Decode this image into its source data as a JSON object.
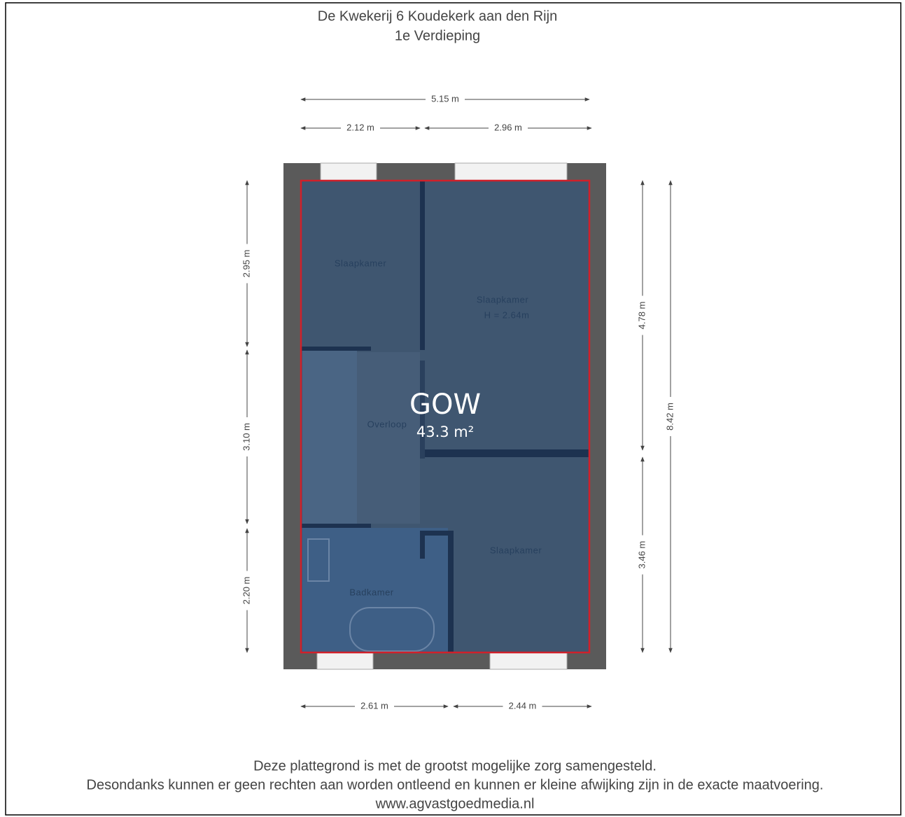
{
  "header": {
    "title": "De Kwekerij 6 Koudekerk aan den Rijn",
    "subtitle": "1e Verdieping"
  },
  "dimensions": {
    "top": [
      "5.15 m",
      "2.12 m",
      "2.96 m"
    ],
    "bottom": [
      "2.61 m",
      "2.44 m"
    ],
    "left": [
      "2.95 m",
      "3.10 m",
      "2.20 m"
    ],
    "right": [
      "4.78 m",
      "3.46 m",
      "8.42 m"
    ]
  },
  "rooms": [
    {
      "label": "Slaapkamer"
    },
    {
      "label": "Slaapkamer",
      "note": "H = 2.64m"
    },
    {
      "label": "Overloop"
    },
    {
      "label": "Slaapkamer"
    },
    {
      "label": "Badkamer"
    }
  ],
  "area": {
    "label": "GOW",
    "value": "43.3 m²"
  },
  "footer": [
    "Deze plattegrond is met de grootst mogelijke zorg samengesteld.",
    "Desondanks kunnen er geen rechten aan worden ontleend en kunnen er kleine afwijking zijn in de exacte maatvoering.",
    "www.agvastgoedmedia.nl"
  ]
}
